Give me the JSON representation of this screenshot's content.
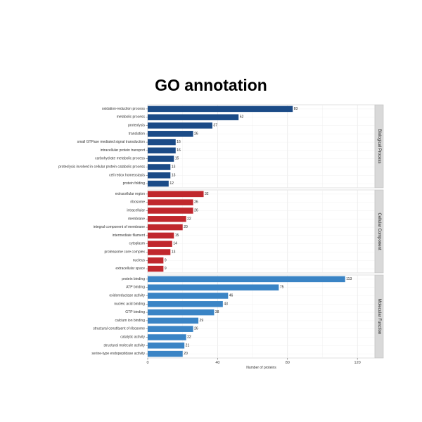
{
  "chart_data": {
    "type": "bar",
    "orientation": "horizontal",
    "title": "GO annotation",
    "xlabel": "Number of proteins",
    "xlim": [
      0,
      130
    ],
    "xticks": [
      0,
      40,
      80,
      120
    ],
    "grid": true,
    "facets": [
      {
        "name": "Biological Process",
        "color": "#1b4b87",
        "categories": [
          "protein folding",
          "cell redox homeostasis",
          "proteolysis involved in cellular protein catabolic process",
          "carbohydrate metabolic process",
          "intracellular protein transport",
          "small GTPase mediated signal transduction",
          "translation",
          "proteolysis",
          "metabolic process",
          "oxidation-reduction process"
        ],
        "values": [
          12,
          13,
          13,
          15,
          16,
          16,
          26,
          37,
          52,
          83
        ]
      },
      {
        "name": "Cellular Component",
        "color": "#c0272d",
        "categories": [
          "extracellular space",
          "nucleus",
          "proteasome core complex",
          "cytoplasm",
          "intermediate filament",
          "integral component of membrane",
          "membrane",
          "intracellular",
          "ribosome",
          "extracellular region"
        ],
        "values": [
          9,
          9,
          13,
          14,
          15,
          20,
          22,
          26,
          26,
          32
        ]
      },
      {
        "name": "Molecular Function",
        "color": "#3a84c5",
        "categories": [
          "serine-type endopeptidase activity",
          "structural molecule activity",
          "catalytic activity",
          "structural constituent of ribosome",
          "calcium ion binding",
          "GTP binding",
          "nucleic acid binding",
          "oxidoreductase activity",
          "ATP binding",
          "protein binding"
        ],
        "values": [
          20,
          21,
          22,
          26,
          29,
          38,
          43,
          46,
          75,
          113
        ]
      }
    ]
  }
}
